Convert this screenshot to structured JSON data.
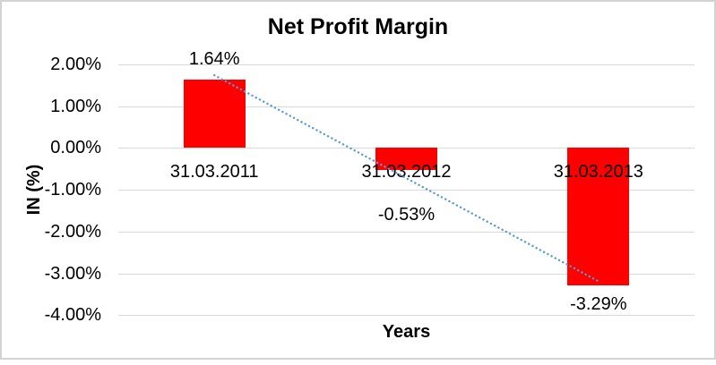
{
  "chart_data": {
    "type": "bar",
    "title": "Net Profit Margin",
    "xlabel": "Years",
    "ylabel": "IN (%)",
    "categories": [
      "31.03.2011",
      "31.03.2012",
      "31.03.2013"
    ],
    "values": [
      1.64,
      -0.53,
      -3.29
    ],
    "data_labels": [
      "1.64%",
      "-0.53%",
      "-3.29%"
    ],
    "yticks": {
      "values": [
        2,
        1,
        0,
        -1,
        -2,
        -3,
        -4
      ],
      "labels": [
        "2.00%",
        "1.00%",
        "0.00%",
        "-1.00%",
        "-2.00%",
        "-3.00%",
        "-4.00%"
      ]
    },
    "ylim": [
      -4,
      2
    ],
    "grid": true,
    "legend": "none",
    "bar_color": "#ff0000",
    "trendline": {
      "type": "linear",
      "style": "dotted",
      "color": "#5b9bd5",
      "start_value": 1.74,
      "end_value": -3.19
    }
  },
  "colors": {
    "gridline": "#d9d9d9",
    "border": "#d3d3d3",
    "text": "#000000"
  }
}
